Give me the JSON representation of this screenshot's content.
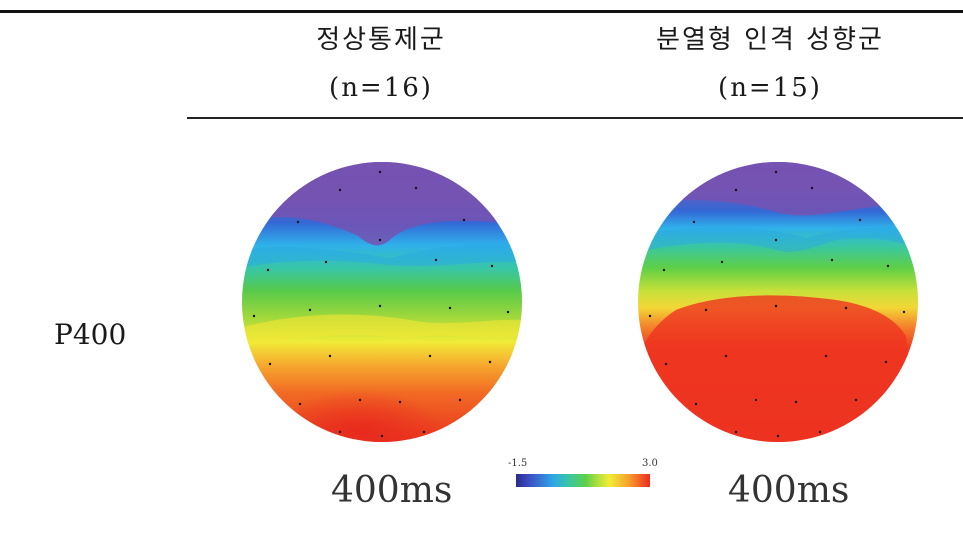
{
  "columns": [
    {
      "name": "정상통제군",
      "n": "(n=16)"
    },
    {
      "name": "분열형 인격 성향군",
      "n": "(n=15)"
    }
  ],
  "row_label": "P400",
  "maps": [
    {
      "time_label": "400ms"
    },
    {
      "time_label": "400ms"
    }
  ],
  "colorbar": {
    "min": "-1.5",
    "max": "3.0"
  }
}
